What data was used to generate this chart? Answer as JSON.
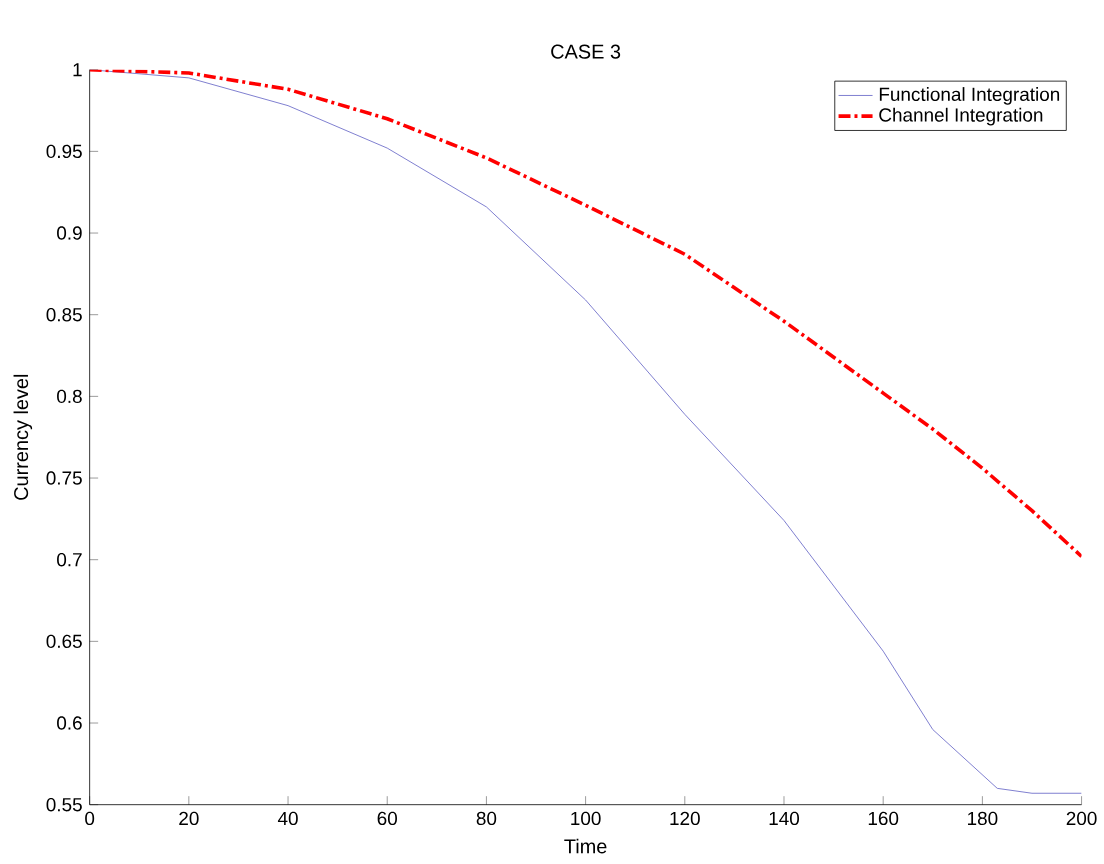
{
  "chart_data": {
    "type": "line",
    "title": "CASE 3",
    "xlabel": "Time",
    "ylabel": "Currency level",
    "xlim": [
      0,
      200
    ],
    "ylim": [
      0.55,
      1
    ],
    "xticks": [
      0,
      20,
      40,
      60,
      80,
      100,
      120,
      140,
      160,
      180,
      200
    ],
    "yticks": [
      0.55,
      0.6,
      0.65,
      0.7,
      0.75,
      0.8,
      0.85,
      0.9,
      0.95,
      1
    ],
    "legend": "top right",
    "grid": false,
    "x": [
      0,
      20,
      40,
      60,
      80,
      100,
      120,
      140,
      160,
      170,
      183,
      190,
      200
    ],
    "series": [
      {
        "name": "Functional Integration",
        "color": "#7f7fd0",
        "line_style": "solid",
        "values": [
          1.0,
          0.995,
          0.978,
          0.952,
          0.916,
          0.859,
          0.789,
          0.724,
          0.644,
          0.596,
          0.56,
          0.557,
          0.557
        ]
      },
      {
        "name": "Channel Integration",
        "color": "#ff0000",
        "line_style": "dashdot",
        "x": [
          0,
          20,
          40,
          60,
          80,
          100,
          120,
          140,
          160,
          170,
          180,
          190,
          200
        ],
        "values": [
          1.0,
          0.998,
          0.988,
          0.97,
          0.946,
          0.917,
          0.887,
          0.846,
          0.802,
          0.78,
          0.756,
          0.73,
          0.702
        ]
      }
    ]
  }
}
